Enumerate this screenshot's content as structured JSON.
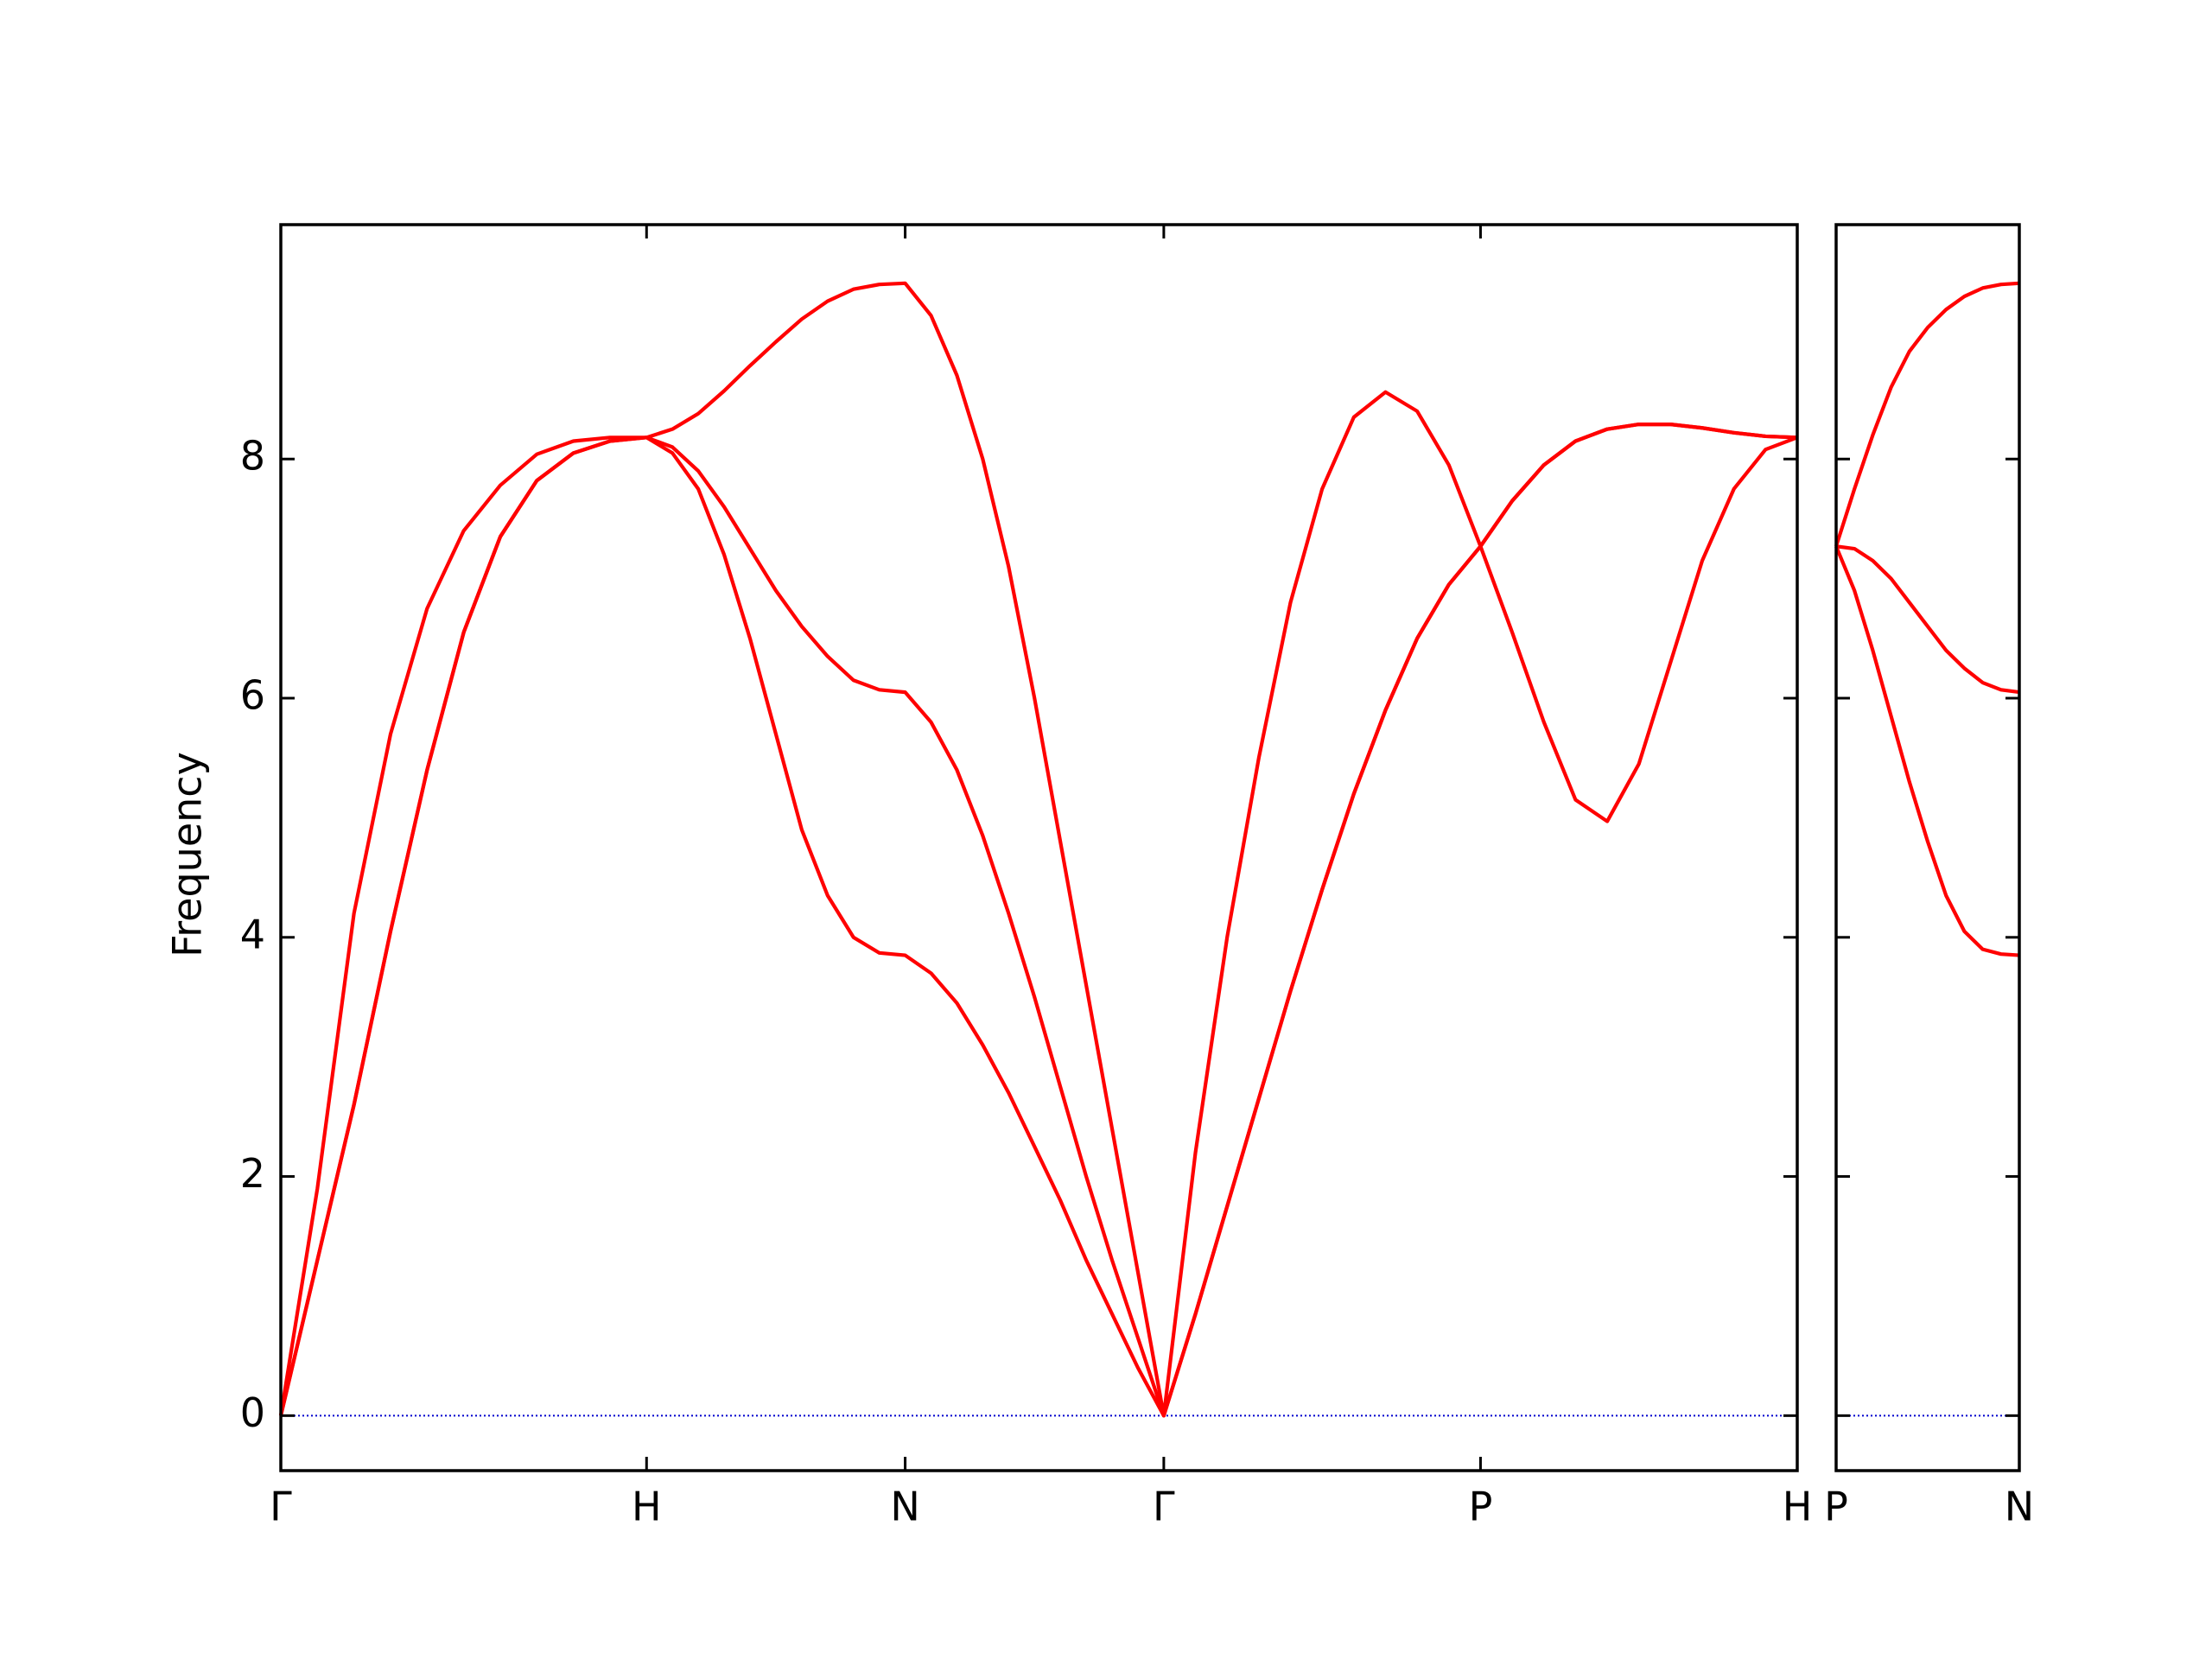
{
  "chart_data": [
    {
      "type": "line",
      "ylabel": "Frequency",
      "x": [
        0,
        0.1,
        0.2,
        0.3,
        0.4,
        0.5,
        0.6,
        0.7,
        0.8,
        0.9,
        1.0,
        1.0707,
        1.1414,
        1.2121,
        1.2828,
        1.3536,
        1.4243,
        1.495,
        1.5657,
        1.6364,
        1.7071,
        1.7778,
        1.8485,
        1.9192,
        1.9899,
        2.0607,
        2.1314,
        2.2021,
        2.2728,
        2.3435,
        2.4142,
        2.5008,
        2.5874,
        2.674,
        2.7606,
        2.8472,
        2.9338,
        3.0204,
        3.107,
        3.1936,
        3.2802,
        3.3668,
        3.4534,
        3.54,
        3.6266,
        3.7132,
        3.7998,
        3.8864,
        3.973,
        4.0596,
        4.1462
      ],
      "series": [
        {
          "color": "#ff0000",
          "values": [
            0,
            1.3,
            2.6,
            4.05,
            5.4,
            6.55,
            7.35,
            7.82,
            8.05,
            8.15,
            8.18,
            8.05,
            7.75,
            7.2,
            6.5,
            5.7,
            4.9,
            4.35,
            4.0,
            3.87,
            3.85,
            3.7,
            3.45,
            3.1,
            2.7,
            2.25,
            1.8,
            1.3,
            0.85,
            0.4,
            0,
            0.85,
            1.75,
            2.65,
            3.55,
            4.4,
            5.2,
            5.9,
            6.5,
            6.95,
            7.27,
            7.65,
            7.95,
            8.15,
            8.25,
            8.29,
            8.29,
            8.26,
            8.22,
            8.19,
            8.18
          ]
        },
        {
          "color": "#ff0000",
          "values": [
            0,
            1.3,
            2.6,
            4.05,
            5.4,
            6.55,
            7.35,
            7.82,
            8.05,
            8.15,
            8.18,
            8.1,
            7.9,
            7.6,
            7.25,
            6.9,
            6.6,
            6.35,
            6.15,
            6.07,
            6.05,
            5.8,
            5.4,
            4.85,
            4.2,
            3.5,
            2.75,
            2.0,
            1.3,
            0.65,
            0,
            0.85,
            1.75,
            2.65,
            3.55,
            4.4,
            5.2,
            5.9,
            6.5,
            6.95,
            7.27,
            7.65,
            7.95,
            8.15,
            8.25,
            8.29,
            8.29,
            8.26,
            8.22,
            8.19,
            8.18
          ]
        },
        {
          "color": "#ff0000",
          "values": [
            0,
            1.9,
            4.2,
            5.7,
            6.75,
            7.4,
            7.78,
            8.04,
            8.15,
            8.18,
            8.18,
            8.25,
            8.38,
            8.57,
            8.78,
            8.98,
            9.17,
            9.32,
            9.42,
            9.46,
            9.47,
            9.2,
            8.7,
            8.0,
            7.1,
            6.0,
            4.8,
            3.6,
            2.4,
            1.2,
            0,
            2.2,
            4.0,
            5.5,
            6.8,
            7.75,
            8.35,
            8.56,
            8.4,
            7.95,
            7.27,
            6.55,
            5.8,
            5.15,
            4.97,
            5.45,
            6.3,
            7.15,
            7.75,
            8.08,
            8.18
          ]
        }
      ],
      "xlim": [
        0,
        4.1462
      ],
      "xticks": [
        {
          "value": 0,
          "label": "Γ"
        },
        {
          "value": 1.0,
          "label": "H"
        },
        {
          "value": 1.7071,
          "label": "N"
        },
        {
          "value": 2.4142,
          "label": "Γ"
        },
        {
          "value": 3.2802,
          "label": "P"
        },
        {
          "value": 4.1462,
          "label": "H"
        }
      ],
      "ylim": [
        -0.46,
        9.96
      ],
      "yticks": [
        0,
        2,
        4,
        6,
        8
      ],
      "ytick_labels": true,
      "hline": {
        "y": 0,
        "color": "#0000cd"
      }
    },
    {
      "type": "line",
      "x": [
        4.1462,
        4.1962,
        4.2462,
        4.2962,
        4.3462,
        4.3962,
        4.4462,
        4.4962,
        4.5462,
        4.5962,
        4.6462
      ],
      "series": [
        {
          "color": "#ff0000",
          "values": [
            7.27,
            6.9,
            6.4,
            5.85,
            5.3,
            4.8,
            4.35,
            4.05,
            3.9,
            3.86,
            3.85
          ]
        },
        {
          "color": "#ff0000",
          "values": [
            7.27,
            7.25,
            7.15,
            7.0,
            6.8,
            6.6,
            6.4,
            6.25,
            6.13,
            6.07,
            6.05
          ]
        },
        {
          "color": "#ff0000",
          "values": [
            7.27,
            7.75,
            8.2,
            8.6,
            8.9,
            9.1,
            9.25,
            9.36,
            9.43,
            9.46,
            9.47
          ]
        }
      ],
      "xlim": [
        4.1462,
        4.6462
      ],
      "xticks": [
        {
          "value": 4.1462,
          "label": "P"
        },
        {
          "value": 4.6462,
          "label": "N"
        }
      ],
      "ylim": [
        -0.46,
        9.96
      ],
      "yticks": [
        0,
        2,
        4,
        6,
        8
      ],
      "ytick_labels": false,
      "hline": {
        "y": 0,
        "color": "#0000cd"
      }
    }
  ]
}
